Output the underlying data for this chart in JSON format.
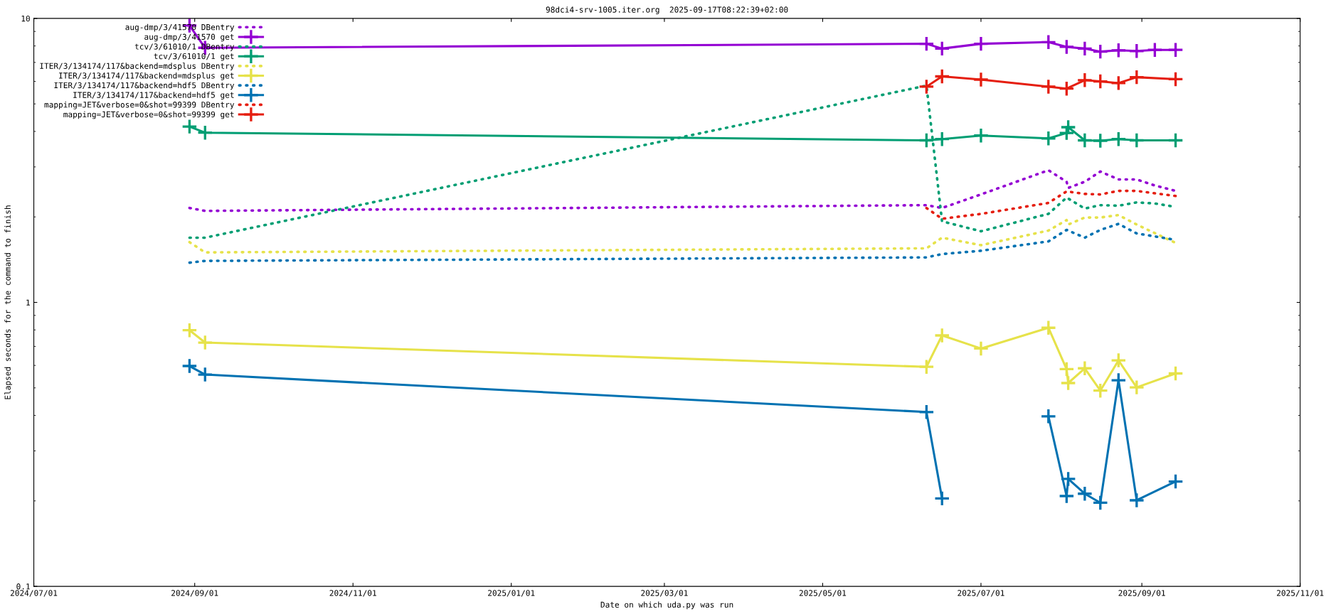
{
  "chart_data": {
    "type": "line",
    "title": "98dci4-srv-1005.iter.org  2025-09-17T08:22:39+02:00",
    "xlabel": "Date on which uda.py was run",
    "ylabel": "Elapsed seconds for the command to finish",
    "log": "y",
    "grid": false,
    "legend": "top left",
    "xlim": [
      "2024-07-01",
      "2025-11-01"
    ],
    "xticks": [
      {
        "value": "2024-07-01",
        "label": "2024/07/01"
      },
      {
        "value": "2024-09-01",
        "label": "2024/09/01"
      },
      {
        "value": "2024-11-01",
        "label": "2024/11/01"
      },
      {
        "value": "2025-01-01",
        "label": "2025/01/01"
      },
      {
        "value": "2025-03-01",
        "label": "2025/03/01"
      },
      {
        "value": "2025-05-01",
        "label": "2025/05/01"
      },
      {
        "value": "2025-07-01",
        "label": "2025/07/01"
      },
      {
        "value": "2025-09-01",
        "label": "2025/09/01"
      },
      {
        "value": "2025-11-01",
        "label": "2025/11/01"
      }
    ],
    "ylim": [
      0.1,
      10
    ],
    "yticks": [
      0.1,
      1,
      10
    ],
    "series": [
      {
        "name": "aug-dmp/3/41570 DBentry",
        "color": "#9400d3",
        "line_style": "dotted",
        "marker": "none",
        "x": [
          "2024-08-30",
          "2024-09-05",
          "2025-06-10",
          "2025-06-16",
          "2025-07-01",
          "2025-07-27",
          "2025-08-03",
          "2025-08-03T15:00",
          "2025-08-10",
          "2025-08-16",
          "2025-08-23",
          "2025-08-30",
          "2025-09-06",
          "2025-09-14"
        ],
        "values": [
          2.15,
          2.1,
          2.2,
          2.15,
          2.4,
          2.92,
          2.66,
          2.53,
          2.66,
          2.89,
          2.71,
          2.71,
          2.58,
          2.47
        ]
      },
      {
        "name": "aug-dmp/3/41570 get",
        "color": "#9400d3",
        "line_style": "solid",
        "marker": "cross",
        "x": [
          "2024-08-30",
          "2024-09-05",
          "2025-06-10",
          "2025-06-16",
          "2025-07-01",
          "2025-07-27",
          "2025-08-03",
          "2025-08-10",
          "2025-08-16",
          "2025-08-23",
          "2025-08-30",
          "2025-09-06",
          "2025-09-14"
        ],
        "values": [
          9.44,
          7.88,
          8.14,
          7.83,
          8.14,
          8.25,
          7.94,
          7.83,
          7.64,
          7.72,
          7.68,
          7.75,
          7.75
        ]
      },
      {
        "name": "tcv/3/61010/1 DBentry",
        "color": "#009e73",
        "line_style": "dotted",
        "marker": "none",
        "x": [
          "2024-08-30",
          "2024-09-05",
          "2025-06-10",
          "2025-06-16",
          "2025-07-01",
          "2025-07-27",
          "2025-08-03",
          "2025-08-10",
          "2025-08-16",
          "2025-08-23",
          "2025-08-30",
          "2025-09-06",
          "2025-09-14"
        ],
        "values": [
          1.69,
          1.69,
          5.8,
          1.93,
          1.78,
          2.05,
          2.34,
          2.14,
          2.2,
          2.19,
          2.25,
          2.23,
          2.17
        ]
      },
      {
        "name": "tcv/3/61010/1 get",
        "color": "#009e73",
        "line_style": "solid",
        "marker": "cross",
        "x": [
          "2024-08-30",
          "2024-09-05",
          "2025-06-10",
          "2025-06-16",
          "2025-07-01",
          "2025-07-27",
          "2025-08-03",
          "2025-08-03T15:00",
          "2025-08-10",
          "2025-08-16",
          "2025-08-23",
          "2025-08-30",
          "2025-09-14"
        ],
        "values": [
          4.16,
          3.96,
          3.72,
          3.76,
          3.87,
          3.78,
          3.95,
          4.14,
          3.72,
          3.71,
          3.76,
          3.72,
          3.72
        ]
      },
      {
        "name": "ITER/3/134174/117&backend=mdsplus DBentry",
        "color": "#e6e24a",
        "line_style": "dotted",
        "marker": "none",
        "x": [
          "2024-08-30",
          "2024-09-05",
          "2025-06-10",
          "2025-06-16",
          "2025-07-01",
          "2025-07-27",
          "2025-08-03",
          "2025-08-03T15:00",
          "2025-08-10",
          "2025-08-16",
          "2025-08-23",
          "2025-08-30",
          "2025-09-14"
        ],
        "values": [
          1.63,
          1.5,
          1.55,
          1.69,
          1.59,
          1.79,
          1.95,
          1.88,
          1.99,
          1.99,
          2.03,
          1.88,
          1.62
        ]
      },
      {
        "name": "ITER/3/134174/117&backend=mdsplus get",
        "color": "#e6e24a",
        "line_style": "solid",
        "marker": "cross",
        "x": [
          "2024-08-30",
          "2024-09-05",
          "2025-06-10",
          "2025-06-16",
          "2025-07-01",
          "2025-07-27",
          "2025-08-03",
          "2025-08-03T15:00",
          "2025-08-10",
          "2025-08-16",
          "2025-08-23",
          "2025-08-30",
          "2025-09-14"
        ],
        "values": [
          0.798,
          0.722,
          0.593,
          0.765,
          0.688,
          0.814,
          0.582,
          0.52,
          0.586,
          0.489,
          0.625,
          0.502,
          0.562
        ]
      },
      {
        "name": "ITER/3/134174/117&backend=hdf5 DBentry",
        "color": "#0072b2",
        "line_style": "dotted",
        "marker": "none",
        "x": [
          "2024-08-30",
          "2024-09-05",
          "2025-06-10",
          "2025-06-16",
          "2025-07-01",
          "2025-07-27",
          "2025-08-03",
          "2025-08-10",
          "2025-08-16",
          "2025-08-23",
          "2025-08-30",
          "2025-09-14"
        ],
        "values": [
          1.38,
          1.4,
          1.44,
          1.48,
          1.52,
          1.64,
          1.8,
          1.69,
          1.8,
          1.89,
          1.75,
          1.66
        ]
      },
      {
        "name": "ITER/3/134174/117&backend=hdf5 get",
        "color": "#0072b2",
        "line_style": "solid",
        "marker": "cross",
        "x": [
          "2024-08-30",
          "2024-09-05",
          "2025-06-10",
          "2025-06-16",
          "2025-07-01",
          "2025-07-27",
          "2025-08-03",
          "2025-08-03T15:00",
          "2025-08-10",
          "2025-08-16",
          "2025-08-23",
          "2025-08-30",
          "2025-09-14"
        ],
        "values": [
          0.597,
          0.557,
          0.411,
          0.204,
          null,
          0.397,
          0.208,
          0.239,
          0.212,
          0.197,
          0.532,
          0.201,
          0.234
        ]
      },
      {
        "name": "mapping=JET&verbose=0&shot=99399 DBentry",
        "color": "#e51e10",
        "line_style": "dotted",
        "marker": "none",
        "x": [
          "2025-06-10",
          "2025-06-16",
          "2025-07-01",
          "2025-07-27",
          "2025-08-03",
          "2025-08-10",
          "2025-08-16",
          "2025-08-23",
          "2025-08-30",
          "2025-09-14"
        ],
        "values": [
          2.15,
          1.97,
          2.05,
          2.24,
          2.46,
          2.41,
          2.4,
          2.47,
          2.47,
          2.37
        ]
      },
      {
        "name": "mapping=JET&verbose=0&shot=99399 get",
        "color": "#e51e10",
        "line_style": "solid",
        "marker": "cross",
        "x": [
          "2025-06-10",
          "2025-06-16",
          "2025-07-01",
          "2025-07-27",
          "2025-08-03",
          "2025-08-10",
          "2025-08-16",
          "2025-08-23",
          "2025-08-30",
          "2025-09-14"
        ],
        "values": [
          5.75,
          6.25,
          6.09,
          5.75,
          5.66,
          6.06,
          6.0,
          5.92,
          6.21,
          6.11
        ]
      }
    ]
  }
}
